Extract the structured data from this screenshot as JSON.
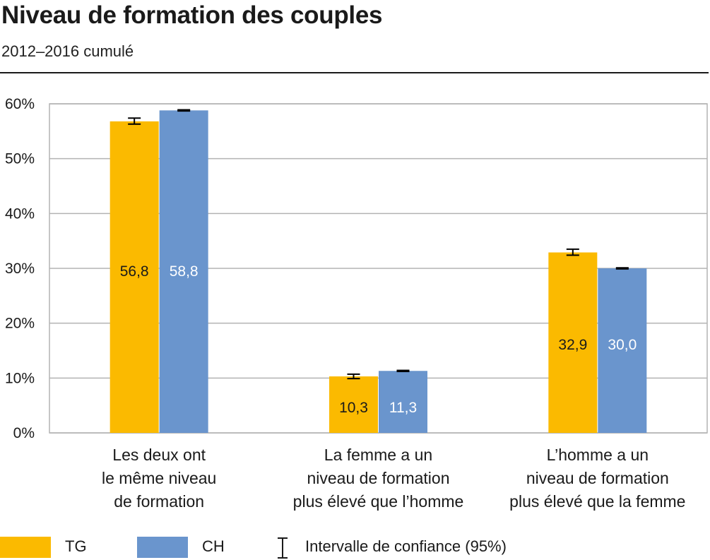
{
  "title": "Niveau de formation des couples",
  "subtitle": "2012–2016 cumulé",
  "colors": {
    "TG": "#FBBA00",
    "CH": "#6A95CD",
    "grid": "#b3b3b3",
    "errorbar": "#000000"
  },
  "legend": {
    "tg_label": "TG",
    "ch_label": "CH",
    "ci_label": "Intervalle de confiance (95%)",
    "ci_icon": "confidence-interval-icon"
  },
  "chart_data": {
    "type": "bar",
    "categories": [
      [
        "Les deux ont",
        "le même niveau",
        "de formation"
      ],
      [
        "La femme a un",
        "niveau de formation",
        "plus élevé que l’homme"
      ],
      [
        "L’homme a un",
        "niveau de formation",
        "plus élevé que la femme"
      ]
    ],
    "series": [
      {
        "name": "TG",
        "values": [
          56.8,
          10.3,
          32.9
        ],
        "labels": [
          "56,8",
          "10,3",
          "32,9"
        ],
        "ci": [
          [
            56.3,
            57.4
          ],
          [
            9.9,
            10.7
          ],
          [
            32.4,
            33.5
          ]
        ]
      },
      {
        "name": "CH",
        "values": [
          58.8,
          11.3,
          30.0
        ],
        "labels": [
          "58,8",
          "11,3",
          "30,0"
        ],
        "ci": [
          [
            58.7,
            58.9
          ],
          [
            11.2,
            11.4
          ],
          [
            29.9,
            30.1
          ]
        ]
      }
    ],
    "yticks": [
      "0%",
      "10%",
      "20%",
      "30%",
      "40%",
      "50%",
      "60%"
    ],
    "ylim": [
      0,
      60
    ],
    "grid": true,
    "legend_position": "bottom"
  }
}
